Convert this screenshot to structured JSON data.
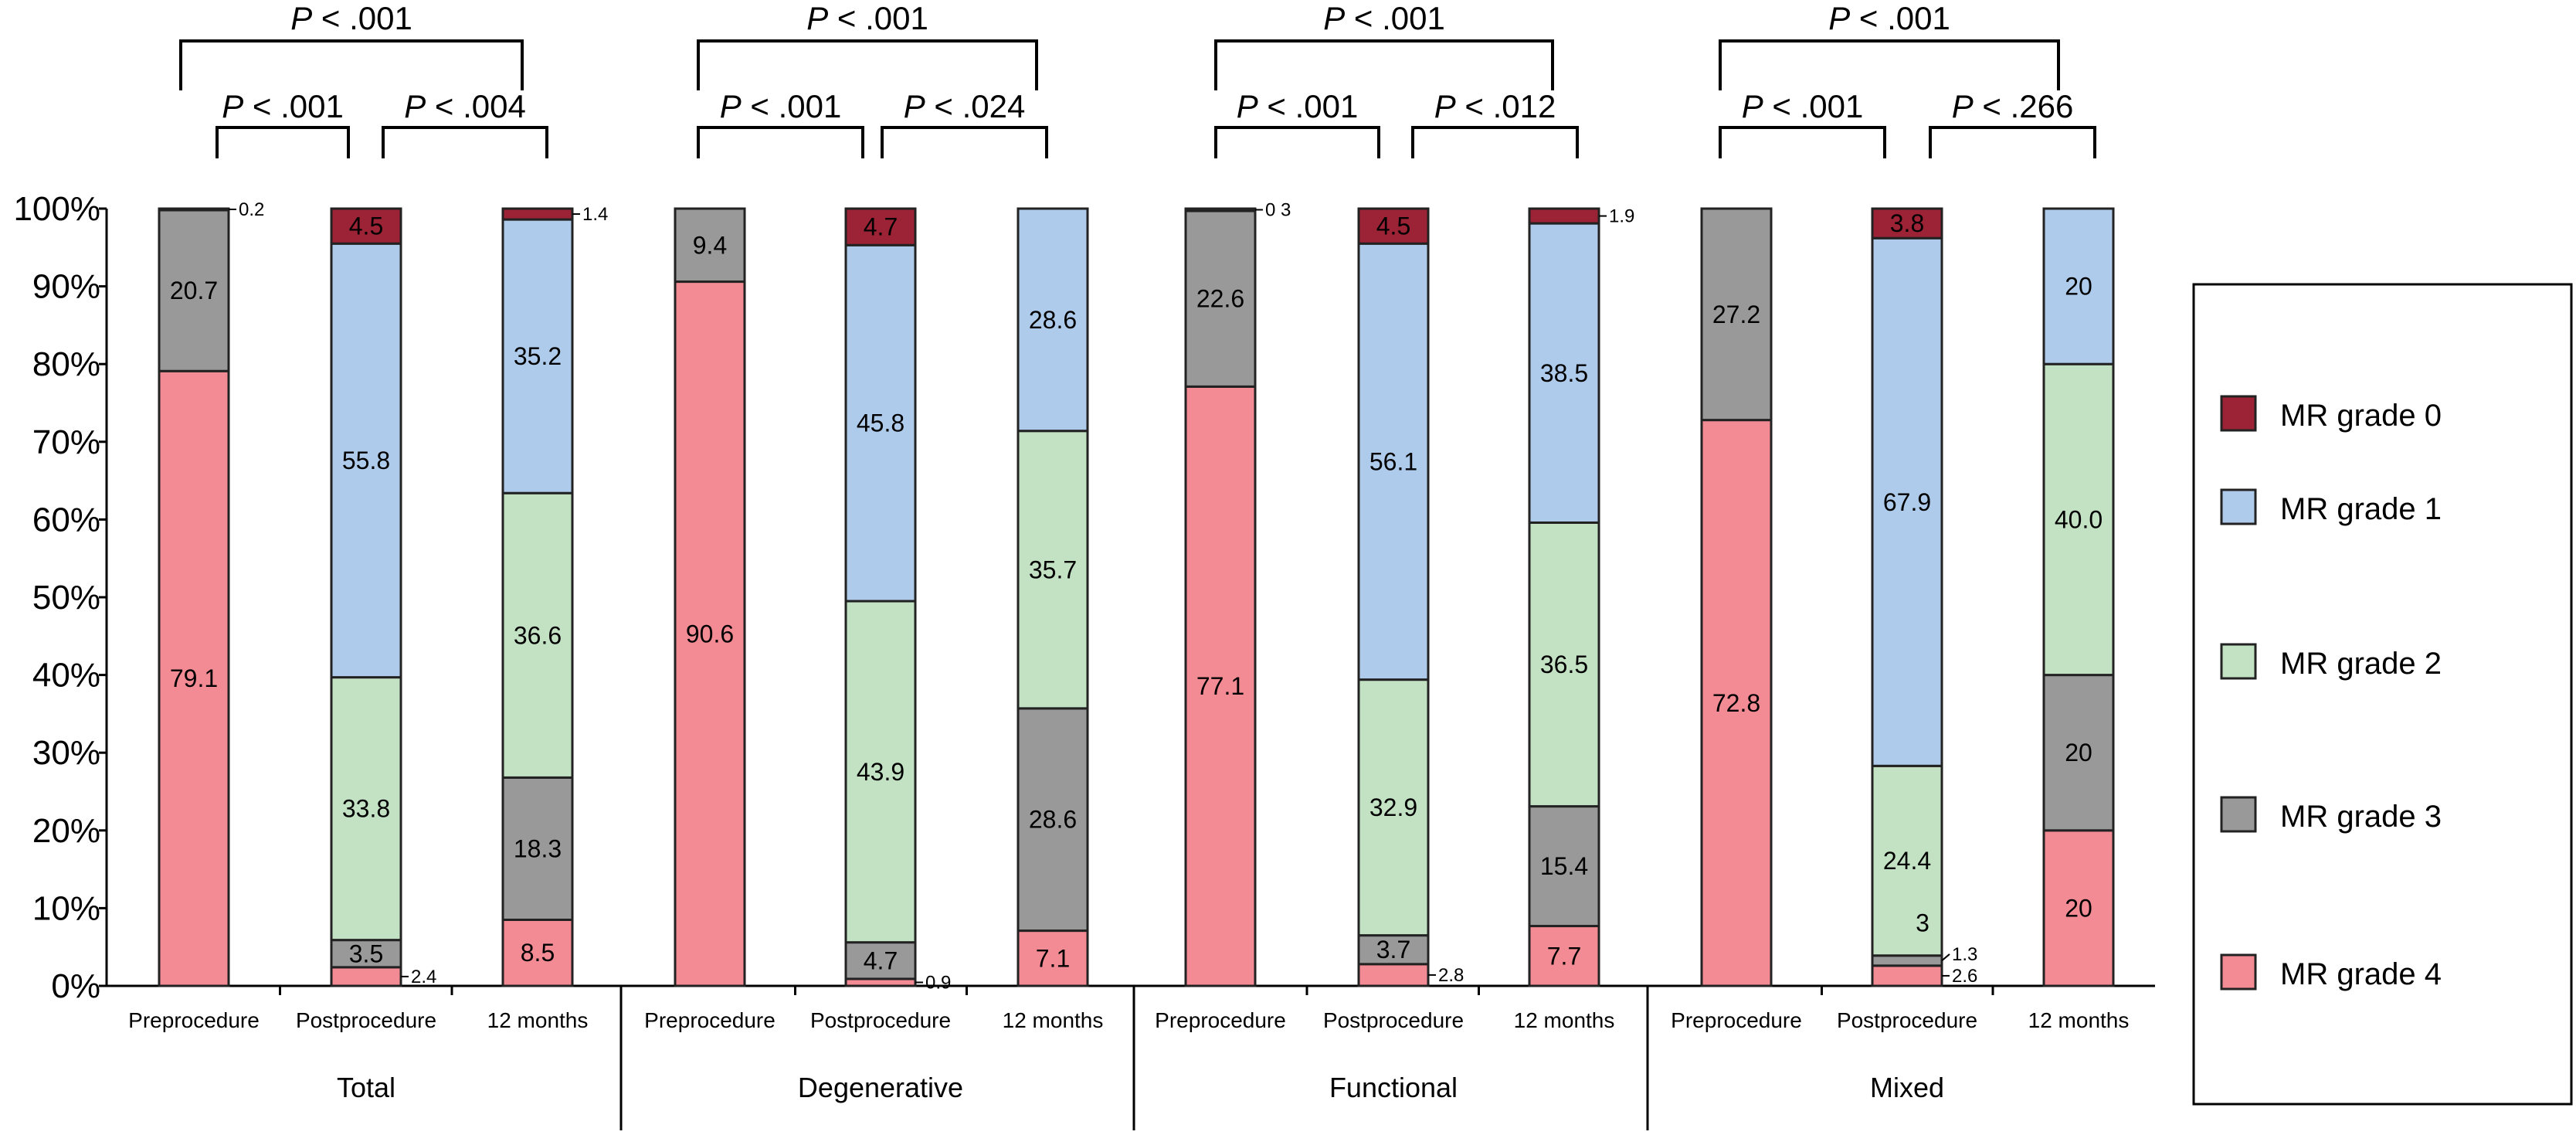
{
  "chart_data": {
    "type": "bar",
    "stacked": true,
    "ylim": [
      0,
      100
    ],
    "yticks": [
      "0%",
      "10%",
      "20%",
      "30%",
      "40%",
      "50%",
      "60%",
      "70%",
      "80%",
      "90%",
      "100%"
    ],
    "legend_position": "right",
    "series_names": [
      "MR grade 0",
      "MR grade 1",
      "MR grade 2",
      "MR grade 3",
      "MR grade 4"
    ],
    "colors": {
      "MR grade 0": "#9b2335",
      "MR grade 1": "#aecbeb",
      "MR grade 2": "#c3e2c4",
      "MR grade 3": "#999999",
      "MR grade 4": "#f28b94"
    },
    "groups": [
      {
        "name": "Total",
        "p_top": "P < .001",
        "p_left": "P < .001",
        "p_right": "P < .004",
        "bars": [
          {
            "category": "Preprocedure",
            "values": {
              "MR grade 4": 79.1,
              "MR grade 3": 20.7,
              "MR grade 2": 0.2,
              "MR grade 1": 0,
              "MR grade 0": 0
            },
            "labels": [
              "79.1",
              "20.7",
              "0.2"
            ]
          },
          {
            "category": "Postprocedure",
            "values": {
              "MR grade 4": 2.4,
              "MR grade 3": 3.5,
              "MR grade 2": 33.8,
              "MR grade 1": 55.8,
              "MR grade 0": 4.5
            },
            "labels": [
              "2.4",
              "3.5",
              "33.8",
              "55.8",
              "4.5"
            ]
          },
          {
            "category": "12 months",
            "values": {
              "MR grade 4": 8.5,
              "MR grade 3": 18.3,
              "MR grade 2": 36.6,
              "MR grade 1": 35.2,
              "MR grade 0": 1.4
            },
            "labels": [
              "8.5",
              "18.3",
              "36.6",
              "35.2",
              "1.4"
            ]
          }
        ]
      },
      {
        "name": "Degenerative",
        "p_top": "P < .001",
        "p_left": "P < .001",
        "p_right": "P < .024",
        "bars": [
          {
            "category": "Preprocedure",
            "values": {
              "MR grade 4": 90.6,
              "MR grade 3": 9.4,
              "MR grade 2": 0,
              "MR grade 1": 0,
              "MR grade 0": 0
            },
            "labels": [
              "90.6",
              "9.4"
            ]
          },
          {
            "category": "Postprocedure",
            "values": {
              "MR grade 4": 0.9,
              "MR grade 3": 4.7,
              "MR grade 2": 43.9,
              "MR grade 1": 45.8,
              "MR grade 0": 4.7
            },
            "labels": [
              "0.9",
              "4.7",
              "43.9",
              "45.8",
              "4.7"
            ]
          },
          {
            "category": "12 months",
            "values": {
              "MR grade 4": 7.1,
              "MR grade 3": 28.6,
              "MR grade 2": 35.7,
              "MR grade 1": 28.6,
              "MR grade 0": 0
            },
            "labels": [
              "7.1",
              "28.6",
              "35.7",
              "28.6"
            ]
          }
        ]
      },
      {
        "name": "Functional",
        "p_top": "P < .001",
        "p_left": "P < .001",
        "p_right": "P < .012",
        "bars": [
          {
            "category": "Preprocedure",
            "values": {
              "MR grade 4": 77.1,
              "MR grade 3": 22.6,
              "MR grade 2": 0.3,
              "MR grade 1": 0,
              "MR grade 0": 0
            },
            "labels": [
              "77.1",
              "22.6",
              "0 3"
            ]
          },
          {
            "category": "Postprocedure",
            "values": {
              "MR grade 4": 2.8,
              "MR grade 3": 3.7,
              "MR grade 2": 32.9,
              "MR grade 1": 56.1,
              "MR grade 0": 4.5
            },
            "labels": [
              "2.8",
              "3.7",
              "32.9",
              "56.1",
              "4.5"
            ]
          },
          {
            "category": "12 months",
            "values": {
              "MR grade 4": 7.7,
              "MR grade 3": 15.4,
              "MR grade 2": 36.5,
              "MR grade 1": 38.5,
              "MR grade 0": 1.9
            },
            "labels": [
              "7.7",
              "15.4",
              "36.5",
              "38.5",
              "1.9"
            ]
          }
        ]
      },
      {
        "name": "Mixed",
        "p_top": "P < .001",
        "p_left": "P < .001",
        "p_right": "P < .266",
        "bars": [
          {
            "category": "Preprocedure",
            "values": {
              "MR grade 4": 72.8,
              "MR grade 3": 27.2,
              "MR grade 2": 0,
              "MR grade 1": 0,
              "MR grade 0": 0
            },
            "labels": [
              "72.8",
              "27.2"
            ]
          },
          {
            "category": "Postprocedure",
            "values": {
              "MR grade 4": 2.6,
              "MR grade 3": 1.3,
              "MR grade 2": 24.4,
              "MR grade 1": 67.9,
              "MR grade 0": 3.8
            },
            "labels": [
              "2.6",
              "1.3",
              "24.4",
              "67.9",
              "3.8"
            ],
            "extra_label": "3"
          },
          {
            "category": "12 months",
            "values": {
              "MR grade 4": 20,
              "MR grade 3": 20,
              "MR grade 2": 40.0,
              "MR grade 1": 20,
              "MR grade 0": 0
            },
            "labels": [
              "20",
              "20",
              "40.0",
              "20"
            ]
          }
        ]
      }
    ]
  }
}
